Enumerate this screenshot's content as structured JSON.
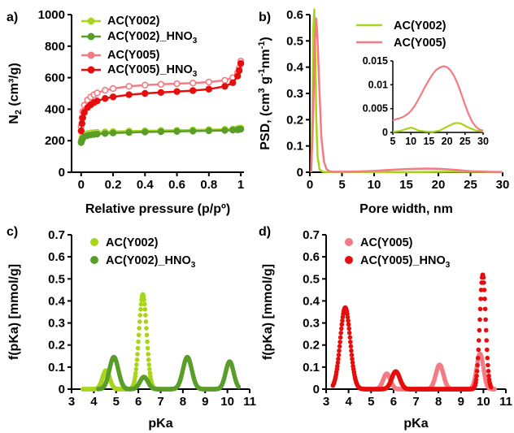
{
  "colors": {
    "y002": "#a8d41c",
    "y002_hno3": "#5a9e2a",
    "y005": "#f47a84",
    "y005_hno3": "#e60d0d"
  },
  "chart_data": [
    {
      "id": "a",
      "panel_label": "a)",
      "type": "line",
      "xlabel": "Relative pressure (p/pº)",
      "ylabel": {
        "base": "N",
        "sub": "2",
        "rest": " (cm³/g)"
      },
      "xlim": [
        -0.06,
        1.02
      ],
      "ylim": [
        0,
        1000
      ],
      "xticks": [
        0,
        0.2,
        0.4,
        0.6,
        0.8,
        1
      ],
      "xtick_labels": [
        "0",
        "0.2",
        "0.4",
        "0.6",
        "0.8",
        "1"
      ],
      "yticks": [
        0,
        200,
        400,
        600,
        800,
        1000
      ],
      "ytick_labels": [
        "0",
        "200",
        "400",
        "600",
        "800",
        "1000"
      ],
      "legend_position": "top-right",
      "series": [
        {
          "name": "AC(Y002)",
          "name_sub": "",
          "color": "#a8d41c",
          "x": [
            0.0,
            0.005,
            0.01,
            0.02,
            0.04,
            0.06,
            0.08,
            0.1,
            0.15,
            0.2,
            0.3,
            0.4,
            0.5,
            0.6,
            0.7,
            0.8,
            0.9,
            0.95,
            0.98,
            0.99,
            1.0
          ],
          "y": [
            200,
            215,
            228,
            238,
            245,
            249,
            251,
            253,
            256,
            258,
            261,
            263,
            265,
            266,
            268,
            270,
            272,
            274,
            276,
            278,
            280
          ]
        },
        {
          "name": "AC(Y002)_HNO",
          "name_sub": "3",
          "color": "#5a9e2a",
          "x": [
            0.0,
            0.005,
            0.01,
            0.02,
            0.04,
            0.06,
            0.08,
            0.1,
            0.15,
            0.2,
            0.3,
            0.4,
            0.5,
            0.6,
            0.7,
            0.8,
            0.9,
            0.95,
            0.98,
            0.99,
            1.0
          ],
          "y": [
            188,
            203,
            215,
            226,
            233,
            237,
            240,
            242,
            246,
            249,
            252,
            255,
            257,
            259,
            261,
            263,
            265,
            267,
            269,
            271,
            273
          ]
        },
        {
          "name": "AC(Y005)",
          "name_sub": "",
          "color": "#f47a84",
          "x": [
            0.0,
            0.005,
            0.01,
            0.02,
            0.04,
            0.06,
            0.08,
            0.1,
            0.15,
            0.2,
            0.3,
            0.4,
            0.5,
            0.6,
            0.7,
            0.8,
            0.9,
            0.95,
            0.98,
            0.99,
            1.0
          ],
          "y": [
            290,
            345,
            385,
            425,
            458,
            478,
            492,
            503,
            520,
            531,
            545,
            553,
            558,
            562,
            566,
            572,
            583,
            600,
            630,
            660,
            705
          ]
        },
        {
          "name": "AC(Y005)_HNO",
          "name_sub": "3",
          "color": "#e60d0d",
          "x": [
            0.0,
            0.005,
            0.01,
            0.02,
            0.04,
            0.06,
            0.08,
            0.1,
            0.15,
            0.2,
            0.3,
            0.4,
            0.5,
            0.6,
            0.7,
            0.8,
            0.9,
            0.95,
            0.98,
            0.99,
            1.0
          ],
          "y": [
            262,
            310,
            345,
            380,
            410,
            428,
            442,
            452,
            468,
            478,
            492,
            500,
            506,
            512,
            518,
            527,
            545,
            568,
            610,
            645,
            690
          ]
        }
      ]
    },
    {
      "id": "b",
      "panel_label": "b)",
      "type": "line",
      "xlabel": "Pore width, nm",
      "ylabel": {
        "a": "PSD, (cm",
        "sup1": "3",
        "b": " g",
        "sup2": "-1",
        "c": "nm",
        "sup3": "-1",
        "d": ")"
      },
      "xlim": [
        0,
        30
      ],
      "ylim": [
        0,
        0.6
      ],
      "xticks": [
        0,
        5,
        10,
        15,
        20,
        25,
        30
      ],
      "xtick_labels": [
        "0",
        "5",
        "10",
        "15",
        "20",
        "25",
        "30"
      ],
      "yticks": [
        0,
        0.1,
        0.2,
        0.3,
        0.4,
        0.5,
        0.6
      ],
      "ytick_labels": [
        "0",
        "0.1",
        "0.2",
        "0.3",
        "0.4",
        "0.5",
        "0.6"
      ],
      "legend_position": "top-right",
      "series": [
        {
          "name": "AC(Y002)",
          "color": "#a8d41c",
          "x": [
            0.2,
            0.4,
            0.55,
            0.7,
            0.85,
            1.0,
            1.2,
            1.5,
            2.0,
            2.5,
            3.0,
            5,
            10,
            15,
            20,
            22,
            25,
            30
          ],
          "y": [
            0.0,
            0.25,
            0.55,
            0.62,
            0.45,
            0.2,
            0.06,
            0.01,
            0.002,
            0.001,
            0.0008,
            0.0005,
            0.0006,
            0.0004,
            0.0015,
            0.002,
            0.0015,
            0.0003
          ]
        },
        {
          "name": "AC(Y005)",
          "color": "#f47a84",
          "x": [
            0.2,
            0.5,
            0.8,
            1.0,
            1.2,
            1.5,
            1.8,
            2.2,
            2.6,
            3.0,
            3.5,
            5,
            7,
            10,
            12,
            15,
            18,
            20,
            22,
            25,
            28,
            30
          ],
          "y": [
            0.0,
            0.2,
            0.5,
            0.585,
            0.5,
            0.3,
            0.13,
            0.04,
            0.012,
            0.004,
            0.002,
            0.002,
            0.0025,
            0.005,
            0.008,
            0.012,
            0.0138,
            0.013,
            0.01,
            0.004,
            0.0015,
            0.001
          ]
        }
      ],
      "inset": {
        "xlim": [
          5,
          30
        ],
        "ylim": [
          0,
          0.015
        ],
        "xticks": [
          5,
          10,
          15,
          20,
          25,
          30
        ],
        "xtick_labels": [
          "5",
          "10",
          "15",
          "20",
          "25",
          "30"
        ],
        "yticks": [
          0,
          0.005,
          0.01,
          0.015
        ],
        "ytick_labels": [
          "0",
          "0.005",
          "0.01",
          "0.015"
        ],
        "series": [
          {
            "name": "AC(Y002)",
            "color": "#a8d41c",
            "x": [
              5,
              7,
              9,
              10,
              11,
              12,
              14,
              16,
              18,
              20,
              22,
              23,
              24,
              26,
              28,
              30
            ],
            "y": [
              0.0001,
              0.0003,
              0.0008,
              0.001,
              0.0008,
              0.0004,
              0.0002,
              0.0001,
              0.0004,
              0.0012,
              0.0019,
              0.002,
              0.0018,
              0.001,
              0.0004,
              0.0002
            ]
          },
          {
            "name": "AC(Y005)",
            "color": "#f47a84",
            "x": [
              5,
              6,
              7,
              8,
              9,
              10,
              11,
              12,
              13,
              14,
              15,
              16,
              17,
              18,
              19,
              20,
              21,
              22,
              23,
              24,
              25,
              26,
              27,
              28,
              29,
              30
            ],
            "y": [
              0.0025,
              0.0028,
              0.003,
              0.0033,
              0.0038,
              0.0045,
              0.0055,
              0.0068,
              0.0082,
              0.0097,
              0.011,
              0.0122,
              0.0131,
              0.0136,
              0.0139,
              0.0137,
              0.013,
              0.0118,
              0.0101,
              0.008,
              0.0058,
              0.0038,
              0.0022,
              0.0012,
              0.0006,
              0.0004
            ]
          }
        ]
      }
    },
    {
      "id": "c",
      "panel_label": "c)",
      "type": "scatter",
      "xlabel": "pKa",
      "ylabel": "f(pKa) [mmol/g]",
      "xlim": [
        3,
        11
      ],
      "ylim": [
        0,
        0.7
      ],
      "xticks": [
        3,
        4,
        5,
        6,
        7,
        8,
        9,
        10,
        11
      ],
      "xtick_labels": [
        "3",
        "4",
        "5",
        "6",
        "7",
        "8",
        "9",
        "10",
        "11"
      ],
      "yticks": [
        0,
        0.1,
        0.2,
        0.3,
        0.4,
        0.5,
        0.6,
        0.7
      ],
      "ytick_labels": [
        "0",
        "0.1",
        "0.2",
        "0.3",
        "0.4",
        "0.5",
        "0.6",
        "0.7"
      ],
      "legend_position": "top-left",
      "series": [
        {
          "name": "AC(Y002)",
          "name_sub": "",
          "color": "#a8d41c",
          "range": [
            3.5,
            6.9
          ],
          "peaks": [
            {
              "center": 4.55,
              "height": 0.085,
              "width": 0.16
            },
            {
              "center": 6.2,
              "height": 0.43,
              "width": 0.17
            }
          ]
        },
        {
          "name": "AC(Y002)_HNO",
          "name_sub": "3",
          "color": "#5a9e2a",
          "range": [
            4.2,
            10.5
          ],
          "peaks": [
            {
              "center": 4.9,
              "height": 0.145,
              "width": 0.2
            },
            {
              "center": 6.25,
              "height": 0.055,
              "width": 0.18
            },
            {
              "center": 8.2,
              "height": 0.145,
              "width": 0.2
            },
            {
              "center": 10.1,
              "height": 0.125,
              "width": 0.18
            }
          ]
        }
      ]
    },
    {
      "id": "d",
      "panel_label": "d)",
      "type": "scatter",
      "xlabel": "pKa",
      "ylabel": "f(pKa) [mmol/g]",
      "xlim": [
        3,
        11
      ],
      "ylim": [
        0,
        0.7
      ],
      "xticks": [
        3,
        4,
        5,
        6,
        7,
        8,
        9,
        10,
        11
      ],
      "xtick_labels": [
        "3",
        "4",
        "5",
        "6",
        "7",
        "8",
        "9",
        "10",
        "11"
      ],
      "yticks": [
        0,
        0.1,
        0.2,
        0.3,
        0.4,
        0.5,
        0.6,
        0.7
      ],
      "ytick_labels": [
        "0",
        "0.1",
        "0.2",
        "0.3",
        "0.4",
        "0.5",
        "0.6",
        "0.7"
      ],
      "legend_position": "top-left",
      "series": [
        {
          "name": "AC(Y005)",
          "name_sub": "",
          "color": "#f47a84",
          "range": [
            5.2,
            10.5
          ],
          "peaks": [
            {
              "center": 5.7,
              "height": 0.07,
              "width": 0.16
            },
            {
              "center": 8.05,
              "height": 0.11,
              "width": 0.17
            },
            {
              "center": 9.85,
              "height": 0.16,
              "width": 0.15
            }
          ]
        },
        {
          "name": "AC(Y005)_HNO",
          "name_sub": "3",
          "color": "#e60d0d",
          "range": [
            3.3,
            10.35
          ],
          "peaks": [
            {
              "center": 3.85,
              "height": 0.37,
              "width": 0.22
            },
            {
              "center": 6.1,
              "height": 0.08,
              "width": 0.18
            },
            {
              "center": 9.97,
              "height": 0.52,
              "width": 0.13
            }
          ]
        }
      ]
    }
  ]
}
